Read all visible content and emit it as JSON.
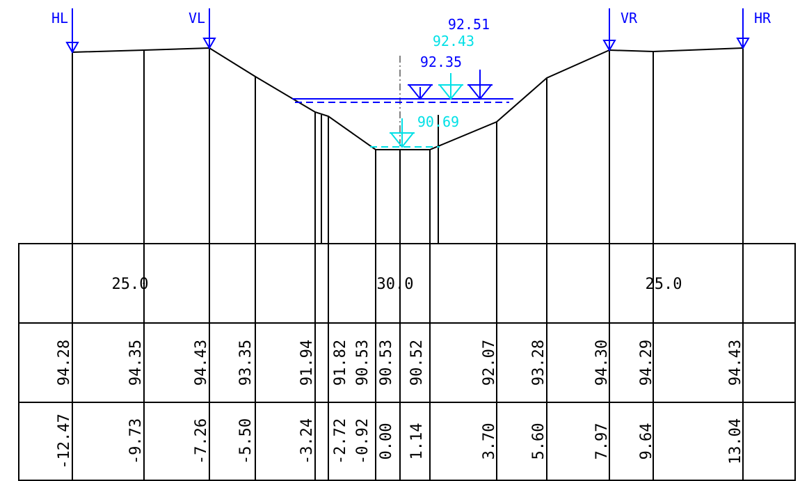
{
  "colors": {
    "line": "#000000",
    "marker_blue": "#0000ff",
    "water_cyan": "#00e0e6"
  },
  "markers": [
    {
      "label": "HL",
      "color": "#0000ff",
      "station": -12.47
    },
    {
      "label": "VL",
      "color": "#0000ff",
      "station": -7.26
    },
    {
      "label": "VR",
      "color": "#0000ff",
      "station": 7.97
    },
    {
      "label": "HR",
      "color": "#0000ff",
      "station": 13.04
    }
  ],
  "water_levels": [
    {
      "elevation": 92.51,
      "color": "#0000ff"
    },
    {
      "elevation": 92.43,
      "color": "#00e0e6"
    },
    {
      "elevation": 92.35,
      "color": "#0000ff"
    },
    {
      "elevation": 90.69,
      "color": "#00e0e6"
    }
  ],
  "water_labels": [
    "92.51",
    "92.43",
    "92.35",
    "90.69"
  ],
  "profile_points": [
    {
      "station": -12.47,
      "elevation": 94.28
    },
    {
      "station": -9.73,
      "elevation": 94.35
    },
    {
      "station": -7.26,
      "elevation": 94.43
    },
    {
      "station": -5.5,
      "elevation": 93.35
    },
    {
      "station": -3.24,
      "elevation": 91.94
    },
    {
      "station": -2.72,
      "elevation": 91.82
    },
    {
      "station": -0.92,
      "elevation": 90.53
    },
    {
      "station": 0.0,
      "elevation": 90.53
    },
    {
      "station": 1.14,
      "elevation": 90.52
    },
    {
      "station": 3.7,
      "elevation": 92.07
    },
    {
      "station": 5.6,
      "elevation": 93.28
    },
    {
      "station": 7.97,
      "elevation": 94.3
    },
    {
      "station": 9.64,
      "elevation": 94.29
    },
    {
      "station": 13.04,
      "elevation": 94.43
    }
  ],
  "table": {
    "segments": [
      "25.0",
      "30.0",
      "25.0"
    ],
    "elevation_labels": [
      "94.28",
      "94.35",
      "94.43",
      "93.35",
      "91.94",
      "91.82",
      "90.53",
      "90.53",
      "90.52",
      "92.07",
      "93.28",
      "94.30",
      "94.29",
      "94.43"
    ],
    "station_labels": [
      "-12.47",
      "-9.73",
      "-7.26",
      "-5.50",
      "-3.24",
      "-2.72",
      "-0.92",
      "0.00",
      "1.14",
      "3.70",
      "5.60",
      "7.97",
      "9.64",
      "13.04"
    ]
  }
}
